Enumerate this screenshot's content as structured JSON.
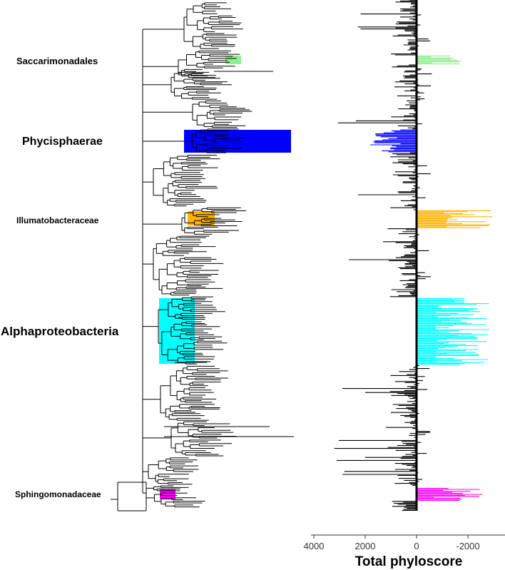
{
  "chart_data": {
    "type": "bar",
    "description_panels": [
      "phylogenetic-tree",
      "horizontal-bars"
    ],
    "clades": [
      {
        "name": "Saccarimonadales",
        "color": "#90ee90",
        "bar_range": [
          -1800,
          0
        ]
      },
      {
        "name": "Phycisphaerae",
        "color": "#0000ff",
        "bar_range": [
          0,
          1800
        ]
      },
      {
        "name": "Illumatobacteraceae",
        "color": "#ffb300",
        "bar_range": [
          -3000,
          0
        ]
      },
      {
        "name": "Alphaproteobacteria",
        "color": "#00ffff",
        "bar_range": [
          -2900,
          0
        ]
      },
      {
        "name": "Sphingomonadaceae",
        "color": "#ff00ff",
        "bar_range": [
          -2600,
          0
        ]
      }
    ],
    "background_color": "#000000",
    "xaxis": {
      "title": "Total phyloscore",
      "ticks": [
        4000,
        2000,
        0,
        -2000
      ],
      "tick_labels": [
        "4000",
        "2000",
        "0",
        "-2000"
      ],
      "range": [
        4000,
        -3200
      ],
      "reversed": true
    },
    "grid": false,
    "legend": "none"
  }
}
